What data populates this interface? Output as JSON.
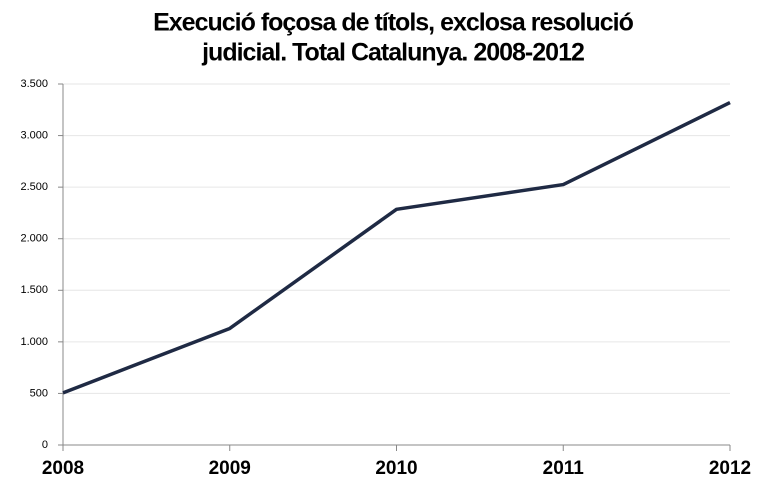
{
  "chart_data": {
    "type": "line",
    "title": [
      "Execució foçosa de títols, exclosa resolució",
      "judicial. Total Catalunya. 2008-2012"
    ],
    "x": [
      2008,
      2009,
      2010,
      2011,
      2012
    ],
    "series": [
      {
        "name": "Execució forçosa",
        "color": "#1f2a44",
        "values": [
          505,
          1130,
          2285,
          2525,
          3320
        ]
      }
    ],
    "xlim": [
      2008,
      2012
    ],
    "xticks": [
      2008,
      2009,
      2010,
      2011,
      2012
    ],
    "ylim": [
      0,
      3500
    ],
    "yticks": [
      0,
      500,
      {
        "value": 1000,
        "label": "1.000"
      },
      {
        "value": 1500,
        "label": "1.500"
      },
      {
        "value": 2000,
        "label": "2.000"
      },
      {
        "value": 2500,
        "label": "2.500"
      },
      {
        "value": 3000,
        "label": "3.000"
      },
      {
        "value": 3500,
        "label": "3.500"
      }
    ],
    "grid": true
  }
}
